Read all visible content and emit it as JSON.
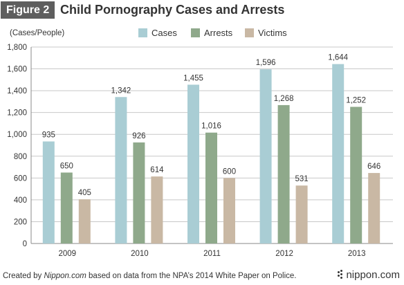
{
  "header": {
    "badge": "Figure 2",
    "title": "Child Pornography Cases and Arrests"
  },
  "chart_data": {
    "type": "bar",
    "title": "Child Pornography Cases and Arrests",
    "ylabel": "(Cases/People)",
    "xlabel": "",
    "categories": [
      "2009",
      "2010",
      "2011",
      "2012",
      "2013"
    ],
    "ylim": [
      0,
      1800
    ],
    "yticks": [
      0,
      200,
      400,
      600,
      800,
      1000,
      1200,
      1400,
      1600,
      1800
    ],
    "ytick_labels": [
      "0",
      "200",
      "400",
      "600",
      "800",
      "1,000",
      "1,200",
      "1,400",
      "1,600",
      "1,800"
    ],
    "grid": true,
    "legend": "top-center",
    "series": [
      {
        "name": "Cases",
        "color": "#a9cdd4",
        "values": [
          935,
          1342,
          1455,
          1596,
          1644
        ],
        "labels": [
          "935",
          "1,342",
          "1,455",
          "1,596",
          "1,644"
        ]
      },
      {
        "name": "Arrests",
        "color": "#8fa98b",
        "values": [
          650,
          926,
          1016,
          1268,
          1252
        ],
        "labels": [
          "650",
          "926",
          "1,016",
          "1,268",
          "1,252"
        ]
      },
      {
        "name": "Victims",
        "color": "#c9b8a4",
        "values": [
          405,
          614,
          600,
          531,
          646
        ],
        "labels": [
          "405",
          "614",
          "600",
          "531",
          "646"
        ]
      }
    ]
  },
  "footer": {
    "prefix": "Created by ",
    "source_name": "Nippon.com",
    "suffix": " based on data from the NPA’s 2014 White Paper on Police."
  },
  "brand": {
    "name": "nippon.com",
    "icon": "dots-icon"
  }
}
